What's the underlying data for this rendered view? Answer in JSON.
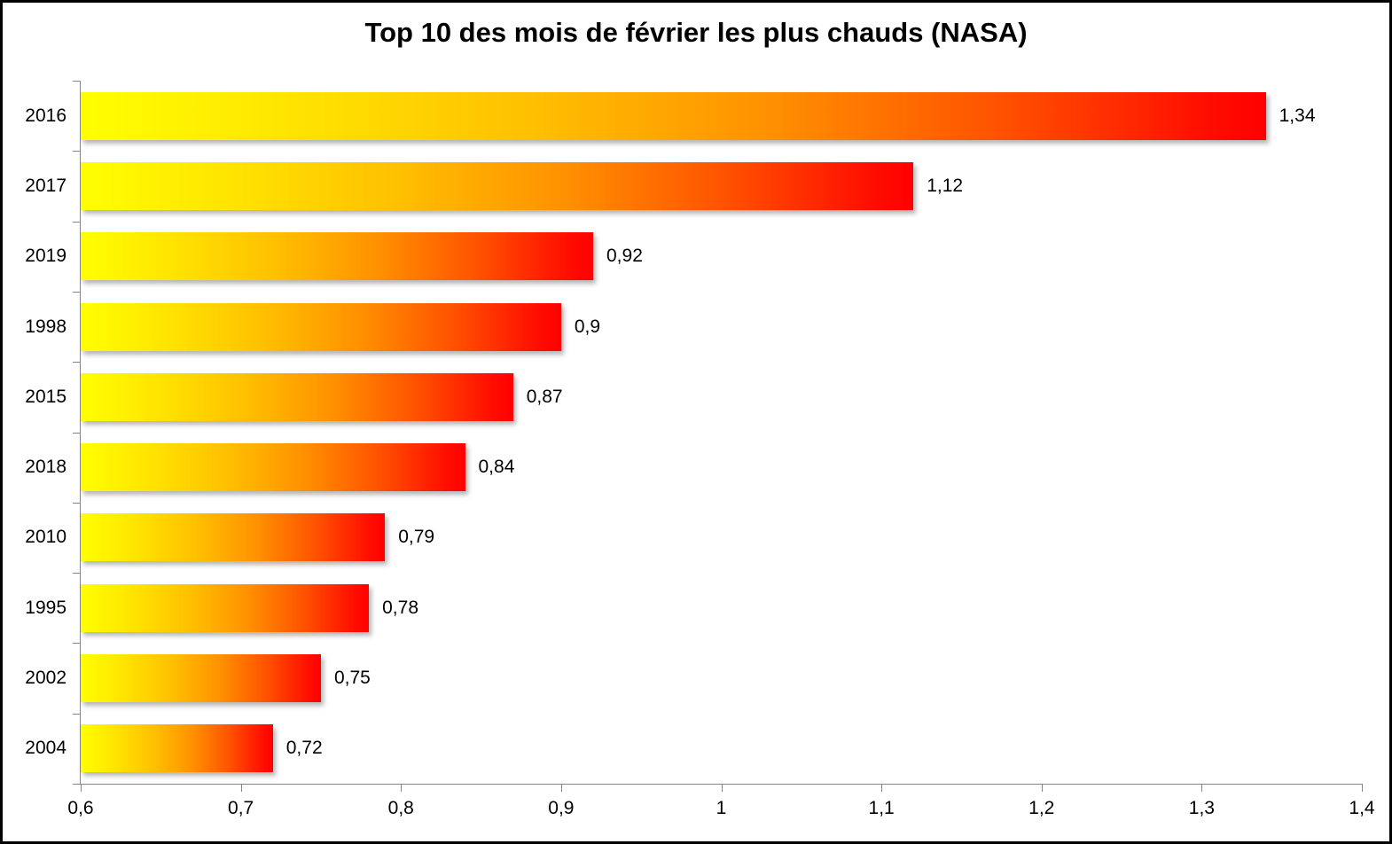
{
  "chart_data": {
    "type": "bar",
    "orientation": "horizontal",
    "title": "Top 10 des mois de février les plus chauds (NASA)",
    "xlabel": "",
    "ylabel": "",
    "categories": [
      "2016",
      "2017",
      "2019",
      "1998",
      "2015",
      "2018",
      "2010",
      "1995",
      "2002",
      "2004"
    ],
    "values": [
      1.34,
      1.12,
      0.92,
      0.9,
      0.87,
      0.84,
      0.79,
      0.78,
      0.75,
      0.72
    ],
    "value_labels": [
      "1,34",
      "1,12",
      "0,92",
      "0,9",
      "0,87",
      "0,84",
      "0,79",
      "0,78",
      "0,75",
      "0,72"
    ],
    "xlim": [
      0.6,
      1.4
    ],
    "x_ticks": [
      0.6,
      0.7,
      0.8,
      0.9,
      1.0,
      1.1,
      1.2,
      1.3,
      1.4
    ],
    "x_tick_labels": [
      "0,6",
      "0,7",
      "0,8",
      "0,9",
      "1",
      "1,1",
      "1,2",
      "1,3",
      "1,4"
    ],
    "grid": false,
    "legend": false,
    "decimal_separator": ",",
    "bar_gradient_start": "#ffff00",
    "bar_gradient_end": "#ff0000",
    "axis_color": "#848484",
    "text_color": "#000000",
    "background_color": "#ffffff"
  }
}
